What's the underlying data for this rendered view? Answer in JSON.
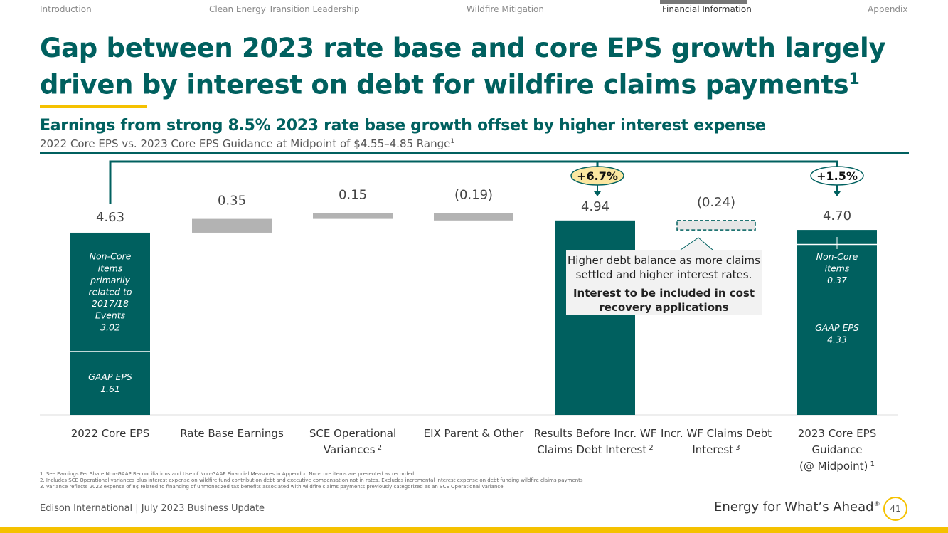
{
  "nav": [
    "Introduction",
    "Clean Energy Transition Leadership",
    "Wildfire Mitigation",
    "Financial Information",
    "Appendix"
  ],
  "nav_active": "Financial Information",
  "title": "Gap between 2023 rate base and core EPS growth largely driven by interest on debt for wildfire claims payments",
  "title_sup": "1",
  "subtitle": "Earnings from strong 8.5% 2023 rate base growth offset by higher interest expense",
  "subsubtitle": "2022 Core EPS vs. 2023 Core EPS Guidance at Midpoint of $4.55–4.85 Range",
  "subsubtitle_sup": "1",
  "colors": {
    "teal": "#00605f",
    "gray": "#b3b3b3",
    "yellow": "#f5c100",
    "badge": "#fbe7a1"
  },
  "chart_data": {
    "type": "bar",
    "subtype": "waterfall",
    "categories": [
      "2022 Core EPS",
      "Rate Base Earnings",
      "SCE Operational Variances",
      "EIX Parent & Other",
      "Results Before Incr. WF Claims Debt Interest",
      "Incr. WF Claims Debt Interest",
      "2023 Core EPS Guidance (@ Midpoint)"
    ],
    "category_lines": [
      [
        "2022 Core EPS"
      ],
      [
        "Rate Base Earnings"
      ],
      [
        "SCE Operational",
        "Variances"
      ],
      [
        "EIX Parent & Other"
      ],
      [
        "Results Before Incr. WF",
        "Claims Debt Interest"
      ],
      [
        "Incr. WF Claims Debt",
        "Interest"
      ],
      [
        "2023 Core EPS",
        "Guidance",
        "(@ Midpoint)"
      ]
    ],
    "category_sups": [
      "",
      "",
      "2",
      "",
      "2",
      "3",
      "1"
    ],
    "values": [
      4.63,
      0.35,
      0.15,
      -0.19,
      4.94,
      -0.24,
      4.7
    ],
    "kinds": [
      "total",
      "delta",
      "delta",
      "delta",
      "total",
      "delta-dashed",
      "total"
    ],
    "labels": [
      "4.63",
      "0.35",
      "0.15",
      "(0.19)",
      "4.94",
      "(0.24)",
      "4.70"
    ],
    "segments": {
      "0": [
        {
          "label": [
            "GAAP EPS",
            "1.61"
          ],
          "value": 1.61
        },
        {
          "label": [
            "Non-Core",
            "items",
            "primarily",
            "related to",
            "2017/18",
            "Events",
            "3.02"
          ],
          "value": 3.02
        }
      ],
      "6": [
        {
          "label": [
            "GAAP EPS",
            "4.33"
          ],
          "value": 4.33
        },
        {
          "label": [
            "Non-Core",
            "items",
            "0.37"
          ],
          "value": 0.37
        }
      ]
    },
    "growth": [
      {
        "label": "+6.7%",
        "to": 4,
        "highlight": true
      },
      {
        "label": "+1.5%",
        "to": 6,
        "highlight": false
      }
    ],
    "ylim": [
      0,
      5.2
    ]
  },
  "callout": {
    "text": "Higher debt balance as more claims settled and higher interest rates.",
    "bold": "Interest to be included in cost recovery applications"
  },
  "footnotes": [
    "1.  See Earnings Per Share Non-GAAP Reconciliations and Use of Non-GAAP Financial Measures in Appendix. Non-core items are presented as recorded",
    "2.  Includes SCE Operational variances plus interest expense on wildfire fund contribution debt and executive compensation not in rates. Excludes incremental interest expense on debt funding wildfire claims payments",
    "3.  Variance reflects 2022 expense of 8¢ related to financing of unmonetized tax benefits associated with wildfire claims payments previously categorized as an SCE Operational Variance"
  ],
  "footer": "Edison International |  July 2023 Business Update",
  "tagline": "Energy for What’s Ahead",
  "tagline_mark": "®",
  "page": "41"
}
